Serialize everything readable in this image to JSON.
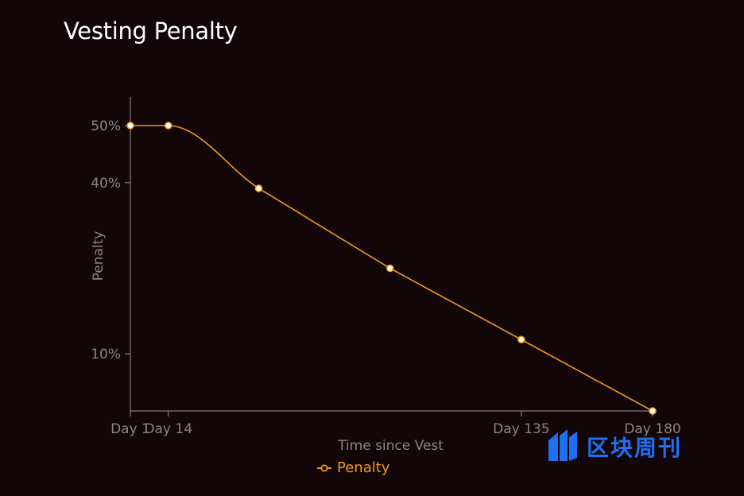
{
  "title": "Vesting Penalty",
  "legend": {
    "label": "Penalty",
    "color": "#f29a1e"
  },
  "watermark": {
    "text": "区块周刊",
    "color": "#1e6ff2"
  },
  "chart_data": {
    "type": "line",
    "title": "Vesting Penalty",
    "xlabel": "Time since Vest",
    "ylabel": "Penalty",
    "x_tick_labels": [
      "Day 1",
      "Day 14",
      "Day 135",
      "Day 180"
    ],
    "x_ticks": [
      1,
      14,
      135,
      180
    ],
    "y_tick_labels": [
      "50%",
      "40%",
      "10%"
    ],
    "y_ticks": [
      50,
      40,
      10
    ],
    "xlim": [
      1,
      180
    ],
    "ylim": [
      0,
      55
    ],
    "series": [
      {
        "name": "Penalty",
        "x": [
          1,
          14,
          45,
          90,
          135,
          180
        ],
        "y": [
          50,
          50,
          39,
          25,
          12.5,
          0
        ]
      }
    ],
    "legend_position": "bottom",
    "grid": false,
    "colors": {
      "line": "#f29a1e",
      "axis": "#6e6868",
      "background": "#120608"
    }
  }
}
